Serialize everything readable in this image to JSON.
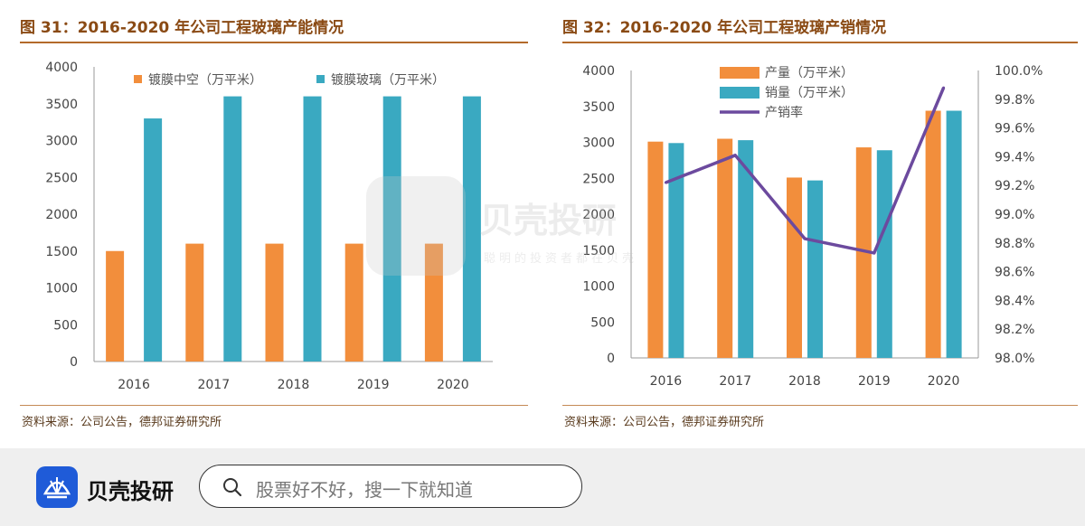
{
  "left_panel": {
    "title": "图 31：2016-2020 年公司工程玻璃产能情况",
    "source": "资料来源：公司公告，德邦证券研究所"
  },
  "right_panel": {
    "title": "图 32：2016-2020 年公司工程玻璃产销情况",
    "source": "资料来源：公司公告，德邦证券研究所"
  },
  "chart_data": [
    {
      "type": "bar",
      "categories": [
        "2016",
        "2017",
        "2018",
        "2019",
        "2020"
      ],
      "series": [
        {
          "name": "镀膜中空（万平米）",
          "values": [
            1500,
            1600,
            1600,
            1600,
            1600
          ],
          "color": "#f28e3c"
        },
        {
          "name": "镀膜玻璃（万平米）",
          "values": [
            3300,
            3600,
            3600,
            3600,
            3600
          ],
          "color": "#3aa9c1"
        }
      ],
      "ylim": [
        0,
        4000
      ],
      "yticks": [
        "0",
        "500",
        "1000",
        "1500",
        "2000",
        "2500",
        "3000",
        "3500",
        "4000"
      ],
      "legend": "top",
      "grid": false
    },
    {
      "type": "bar+line",
      "categories": [
        "2016",
        "2017",
        "2018",
        "2019",
        "2020"
      ],
      "series": [
        {
          "name": "产量（万平米）",
          "values": [
            3010,
            3050,
            2510,
            2930,
            3440
          ],
          "color": "#f28e3c"
        },
        {
          "name": "销量（万平米）",
          "values": [
            2990,
            3030,
            2470,
            2890,
            3440
          ],
          "color": "#3aa9c1"
        },
        {
          "name": "产销率",
          "values": [
            99.22,
            99.41,
            98.83,
            98.73,
            99.88
          ],
          "color": "#6c4a9e",
          "axis": "right"
        }
      ],
      "ylim": [
        0,
        4000
      ],
      "yticks": [
        "0",
        "500",
        "1000",
        "1500",
        "2000",
        "2500",
        "3000",
        "3500",
        "4000"
      ],
      "y2lim": [
        98.0,
        100.0
      ],
      "y2ticks": [
        "98.0%",
        "98.2%",
        "98.4%",
        "98.6%",
        "98.8%",
        "99.0%",
        "99.2%",
        "99.4%",
        "99.6%",
        "99.8%",
        "100.0%"
      ],
      "legend": "top-left",
      "grid": false
    }
  ],
  "watermark": {
    "name": "贝壳投研",
    "slogan": "聪明的投资者都在贝壳"
  },
  "banner": {
    "name": "贝壳投研",
    "search_placeholder": "股票好不好，搜一下就知道",
    "brand_color": "#1f5bd8"
  }
}
